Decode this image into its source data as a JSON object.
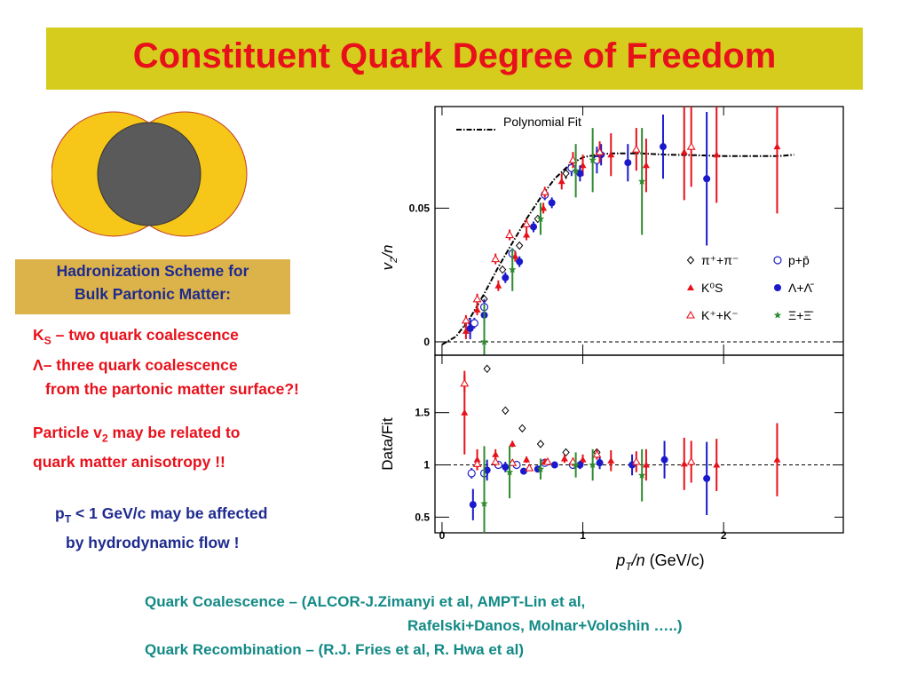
{
  "slide": {
    "title": "Constituent Quark Degree of Freedom",
    "scheme_box": [
      "Hadronization Scheme for",
      "Bulk Partonic Matter:"
    ],
    "ks_line": {
      "k": "K",
      "s": "S",
      "rest": " – two quark coalescence"
    },
    "lambda_line": {
      "sym": "Λ",
      "rest": "– three quark coalescence"
    },
    "surface_line": "from the partonic matter surface?!",
    "particle_line": {
      "a": "Particle v",
      "sub": "2",
      "b": " may be related to"
    },
    "anisotropy_line": "quark matter anisotropy !!",
    "pt_line": {
      "p": "p",
      "t": "T",
      "rest": " < 1 GeV/c may be affected"
    },
    "hydro_line": "by hydrodynamic flow !",
    "refs": [
      "Quark Coalescence – (ALCOR-J.Zimanyi et al, AMPT-Lin et al,",
      "Rafelski+Danos, Molnar+Voloshin …..)",
      "Quark Recombination – (R.J. Fries et al, R. Hwa et al)"
    ],
    "colors": {
      "title_bg": "#d6cc1e",
      "title_text": "#e8111b",
      "box_bg": "#dcb34a",
      "navy": "#1e2a8e",
      "teal": "#138a86"
    }
  },
  "chart_data": {
    "type": "scatter",
    "x_label": "p_T/n (GeV/c)",
    "x_range": [
      -0.05,
      2.85
    ],
    "x_ticks": [
      "0",
      "1",
      "2"
    ],
    "upper": {
      "y_label": "v_2/n",
      "y_range": [
        -0.005,
        0.088
      ],
      "y_ticks": [
        "0",
        "0.05"
      ],
      "reference_line": 0,
      "fit_label": "Polynomial Fit",
      "fit_curve": [
        [
          0,
          -0.001
        ],
        [
          0.1,
          0.002
        ],
        [
          0.2,
          0.009
        ],
        [
          0.3,
          0.018
        ],
        [
          0.4,
          0.028
        ],
        [
          0.5,
          0.037
        ],
        [
          0.6,
          0.046
        ],
        [
          0.7,
          0.054
        ],
        [
          0.8,
          0.061
        ],
        [
          0.9,
          0.066
        ],
        [
          1.0,
          0.069
        ],
        [
          1.1,
          0.07
        ],
        [
          1.2,
          0.0705
        ],
        [
          1.4,
          0.0705
        ],
        [
          1.6,
          0.07
        ],
        [
          1.8,
          0.0698
        ],
        [
          2.0,
          0.0695
        ],
        [
          2.2,
          0.0695
        ],
        [
          2.4,
          0.0695
        ],
        [
          2.5,
          0.07
        ]
      ],
      "series": [
        {
          "name": "π⁺+π⁻",
          "marker": "diamond-open",
          "color": "#000000",
          "points": [
            [
              0.18,
              0.006,
              0.001
            ],
            [
              0.3,
              0.016,
              0.001
            ],
            [
              0.43,
              0.027,
              0.001
            ],
            [
              0.55,
              0.036,
              0.001
            ],
            [
              0.68,
              0.046,
              0.001
            ],
            [
              0.88,
              0.063,
              0.002
            ],
            [
              1.1,
              0.069,
              0.003
            ]
          ]
        },
        {
          "name": "p+p̄",
          "marker": "circle-open",
          "color": "#2222cc",
          "points": [
            [
              0.23,
              0.007,
              0.002
            ],
            [
              0.3,
              0.013,
              0.003
            ],
            [
              0.5,
              0.033,
              0.002
            ],
            [
              0.73,
              0.055,
              0.002
            ],
            [
              0.92,
              0.065,
              0.003
            ],
            [
              1.1,
              0.068,
              0.005
            ]
          ]
        },
        {
          "name": "K⁰S",
          "marker": "triangle-filled",
          "color": "#e8111b",
          "points": [
            [
              0.17,
              0.004,
              0.003
            ],
            [
              0.25,
              0.012,
              0.002
            ],
            [
              0.4,
              0.021,
              0.002
            ],
            [
              0.52,
              0.032,
              0.002
            ],
            [
              0.6,
              0.04,
              0.002
            ],
            [
              0.72,
              0.05,
              0.002
            ],
            [
              0.85,
              0.06,
              0.003
            ],
            [
              1.0,
              0.066,
              0.004
            ],
            [
              1.2,
              0.07,
              0.008
            ],
            [
              1.45,
              0.066,
              0.01
            ],
            [
              1.72,
              0.071,
              0.018
            ],
            [
              1.95,
              0.07,
              0.018
            ],
            [
              2.38,
              0.073,
              0.025
            ]
          ]
        },
        {
          "name": "Λ+Λ̄",
          "marker": "circle-filled",
          "color": "#1a1acc",
          "points": [
            [
              0.2,
              0.005,
              0.004
            ],
            [
              0.3,
              0.01,
              0.003
            ],
            [
              0.45,
              0.024,
              0.002
            ],
            [
              0.55,
              0.03,
              0.002
            ],
            [
              0.65,
              0.043,
              0.002
            ],
            [
              0.78,
              0.052,
              0.002
            ],
            [
              0.98,
              0.063,
              0.003
            ],
            [
              1.13,
              0.07,
              0.004
            ],
            [
              1.32,
              0.067,
              0.007
            ],
            [
              1.57,
              0.073,
              0.012
            ],
            [
              1.88,
              0.061,
              0.025
            ]
          ]
        },
        {
          "name": "K⁺+K⁻",
          "marker": "triangle-open",
          "color": "#e8111b",
          "points": [
            [
              0.17,
              0.008,
              0.002
            ],
            [
              0.25,
              0.016,
              0.002
            ],
            [
              0.38,
              0.031,
              0.002
            ],
            [
              0.48,
              0.04,
              0.002
            ],
            [
              0.6,
              0.044,
              0.002
            ],
            [
              0.73,
              0.056,
              0.002
            ],
            [
              0.93,
              0.068,
              0.003
            ],
            [
              1.12,
              0.071,
              0.004
            ],
            [
              1.38,
              0.072,
              0.008
            ],
            [
              1.77,
              0.073,
              0.015
            ]
          ]
        },
        {
          "name": "Ξ+Ξ̄",
          "marker": "star-filled",
          "color": "#2e8b2e",
          "points": [
            [
              0.3,
              0.0,
              0.014
            ],
            [
              0.5,
              0.027,
              0.008
            ],
            [
              0.7,
              0.046,
              0.006
            ],
            [
              0.95,
              0.064,
              0.01
            ],
            [
              1.07,
              0.068,
              0.012
            ],
            [
              1.42,
              0.06,
              0.02
            ]
          ]
        }
      ]
    },
    "lower": {
      "y_label": "Data/Fit",
      "y_range": [
        0.35,
        2.05
      ],
      "y_ticks": [
        "0.5",
        "1",
        "1.5"
      ],
      "reference_line": 1,
      "series": [
        {
          "name": "π⁺+π⁻",
          "marker": "diamond-open",
          "color": "#000000",
          "points": [
            [
              0.32,
              1.92,
              0
            ],
            [
              0.45,
              1.52,
              0.01
            ],
            [
              0.57,
              1.35,
              0.01
            ],
            [
              0.7,
              1.2,
              0.01
            ],
            [
              0.88,
              1.12,
              0.01
            ],
            [
              1.1,
              1.12,
              0.02
            ]
          ]
        },
        {
          "name": "p+p̄",
          "marker": "circle-open",
          "color": "#2222cc",
          "points": [
            [
              0.21,
              0.92,
              0.05
            ],
            [
              0.3,
              0.92,
              0.03
            ],
            [
              0.4,
              1.0,
              0.03
            ],
            [
              0.53,
              1.0,
              0.02
            ],
            [
              0.73,
              1.02,
              0.02
            ],
            [
              0.93,
              1.0,
              0.03
            ]
          ]
        },
        {
          "name": "K⁰S",
          "marker": "triangle-filled",
          "color": "#e8111b",
          "points": [
            [
              0.16,
              1.5,
              0.4
            ],
            [
              0.25,
              1.05,
              0.1
            ],
            [
              0.38,
              1.1,
              0.05
            ],
            [
              0.5,
              1.2,
              0.03
            ],
            [
              0.6,
              1.05,
              0.03
            ],
            [
              0.73,
              1.03,
              0.03
            ],
            [
              0.87,
              1.06,
              0.04
            ],
            [
              1.0,
              1.05,
              0.05
            ],
            [
              1.2,
              1.04,
              0.1
            ],
            [
              1.45,
              1.0,
              0.15
            ],
            [
              1.72,
              1.01,
              0.25
            ],
            [
              1.95,
              1.0,
              0.25
            ],
            [
              2.38,
              1.05,
              0.35
            ]
          ]
        },
        {
          "name": "Λ+Λ̄",
          "marker": "circle-filled",
          "color": "#1a1acc",
          "points": [
            [
              0.22,
              0.62,
              0.15
            ],
            [
              0.32,
              0.95,
              0.1
            ],
            [
              0.45,
              0.98,
              0.05
            ],
            [
              0.58,
              0.94,
              0.03
            ],
            [
              0.68,
              0.96,
              0.03
            ],
            [
              0.8,
              1.0,
              0.03
            ],
            [
              0.98,
              1.0,
              0.04
            ],
            [
              1.12,
              1.02,
              0.06
            ],
            [
              1.35,
              1.0,
              0.1
            ],
            [
              1.58,
              1.05,
              0.18
            ],
            [
              1.88,
              0.87,
              0.35
            ]
          ]
        },
        {
          "name": "K⁺+K⁻",
          "marker": "triangle-open",
          "color": "#e8111b",
          "points": [
            [
              0.16,
              1.78,
              0.08
            ],
            [
              0.25,
              1.01,
              0.06
            ],
            [
              0.38,
              1.03,
              0.04
            ],
            [
              0.5,
              1.02,
              0.03
            ],
            [
              0.62,
              0.97,
              0.03
            ],
            [
              0.75,
              1.03,
              0.03
            ],
            [
              0.93,
              1.03,
              0.04
            ],
            [
              1.1,
              1.1,
              0.05
            ],
            [
              1.38,
              1.03,
              0.1
            ],
            [
              1.77,
              1.03,
              0.2
            ]
          ]
        },
        {
          "name": "Ξ+Ξ̄",
          "marker": "star-filled",
          "color": "#2e8b2e",
          "points": [
            [
              0.3,
              0.63,
              0.55
            ],
            [
              0.48,
              0.93,
              0.25
            ],
            [
              0.7,
              0.96,
              0.1
            ],
            [
              0.95,
              1.0,
              0.12
            ],
            [
              1.07,
              1.0,
              0.15
            ],
            [
              1.42,
              0.9,
              0.25
            ]
          ]
        }
      ]
    }
  }
}
